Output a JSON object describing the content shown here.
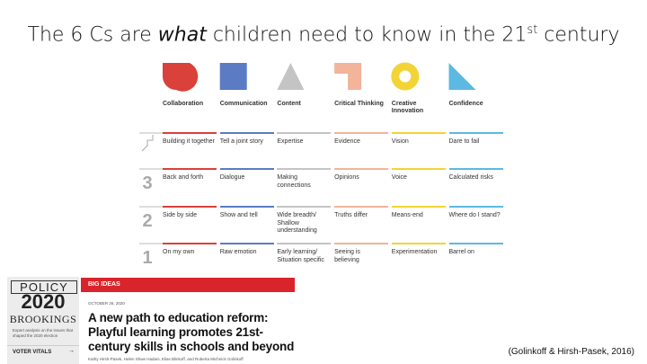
{
  "slide": {
    "title": {
      "before": "The 6 Cs are ",
      "emphasis": "what",
      "middle": " children need to know in the 21",
      "sup": "st",
      "after": " century"
    },
    "columns": [
      {
        "name": "Collaboration",
        "color": "#d9413a"
      },
      {
        "name": "Communication",
        "color": "#5b7bc4"
      },
      {
        "name": "Content",
        "color": "#c4c4c4"
      },
      {
        "name": "Critical Thinking",
        "color": "#f2b49a"
      },
      {
        "name": "Creative Innovation",
        "color": "#f3d437"
      },
      {
        "name": "Confidence",
        "color": "#5cb9e2"
      }
    ],
    "levels": [
      null,
      "3",
      "2",
      "1"
    ],
    "rows": [
      [
        "Building it together",
        "Tell a joint story",
        "Expertise",
        "Evidence",
        "Vision",
        "Dare to fail"
      ],
      [
        "Back and forth",
        "Dialogue",
        "Making connections",
        "Opinions",
        "Voice",
        "Calculated risks"
      ],
      [
        "Side by side",
        "Show and tell",
        "Wide breadth/ Shallow understanding",
        "Truths differ",
        "Means-end",
        "Where do I stand?"
      ],
      [
        "On my own",
        "Raw emotion",
        "Early learning/ Situation specific",
        "Seeing is believing",
        "Experimentation",
        "Barrel on"
      ]
    ],
    "article": {
      "series_top": "POLICY",
      "series_year": "2020",
      "publisher": "BROOKINGS",
      "series_desc": "Expert analysis on the issues that shaped the 2020 election",
      "side_link": "VOTER VITALS",
      "section": "BIG IDEAS",
      "date": "OCTOBER 26, 2020",
      "headline": "A new path to education reform: Playful learning promotes 21st-century skills in schools and beyond",
      "authors": "Kathy Hirsh-Pasek, Helen Shwe Hadani, Elias Blinkoff, and Roberta Michnick Golinkoff"
    },
    "citation": "(Golinkoff & Hirsh-Pasek, 2016)"
  }
}
